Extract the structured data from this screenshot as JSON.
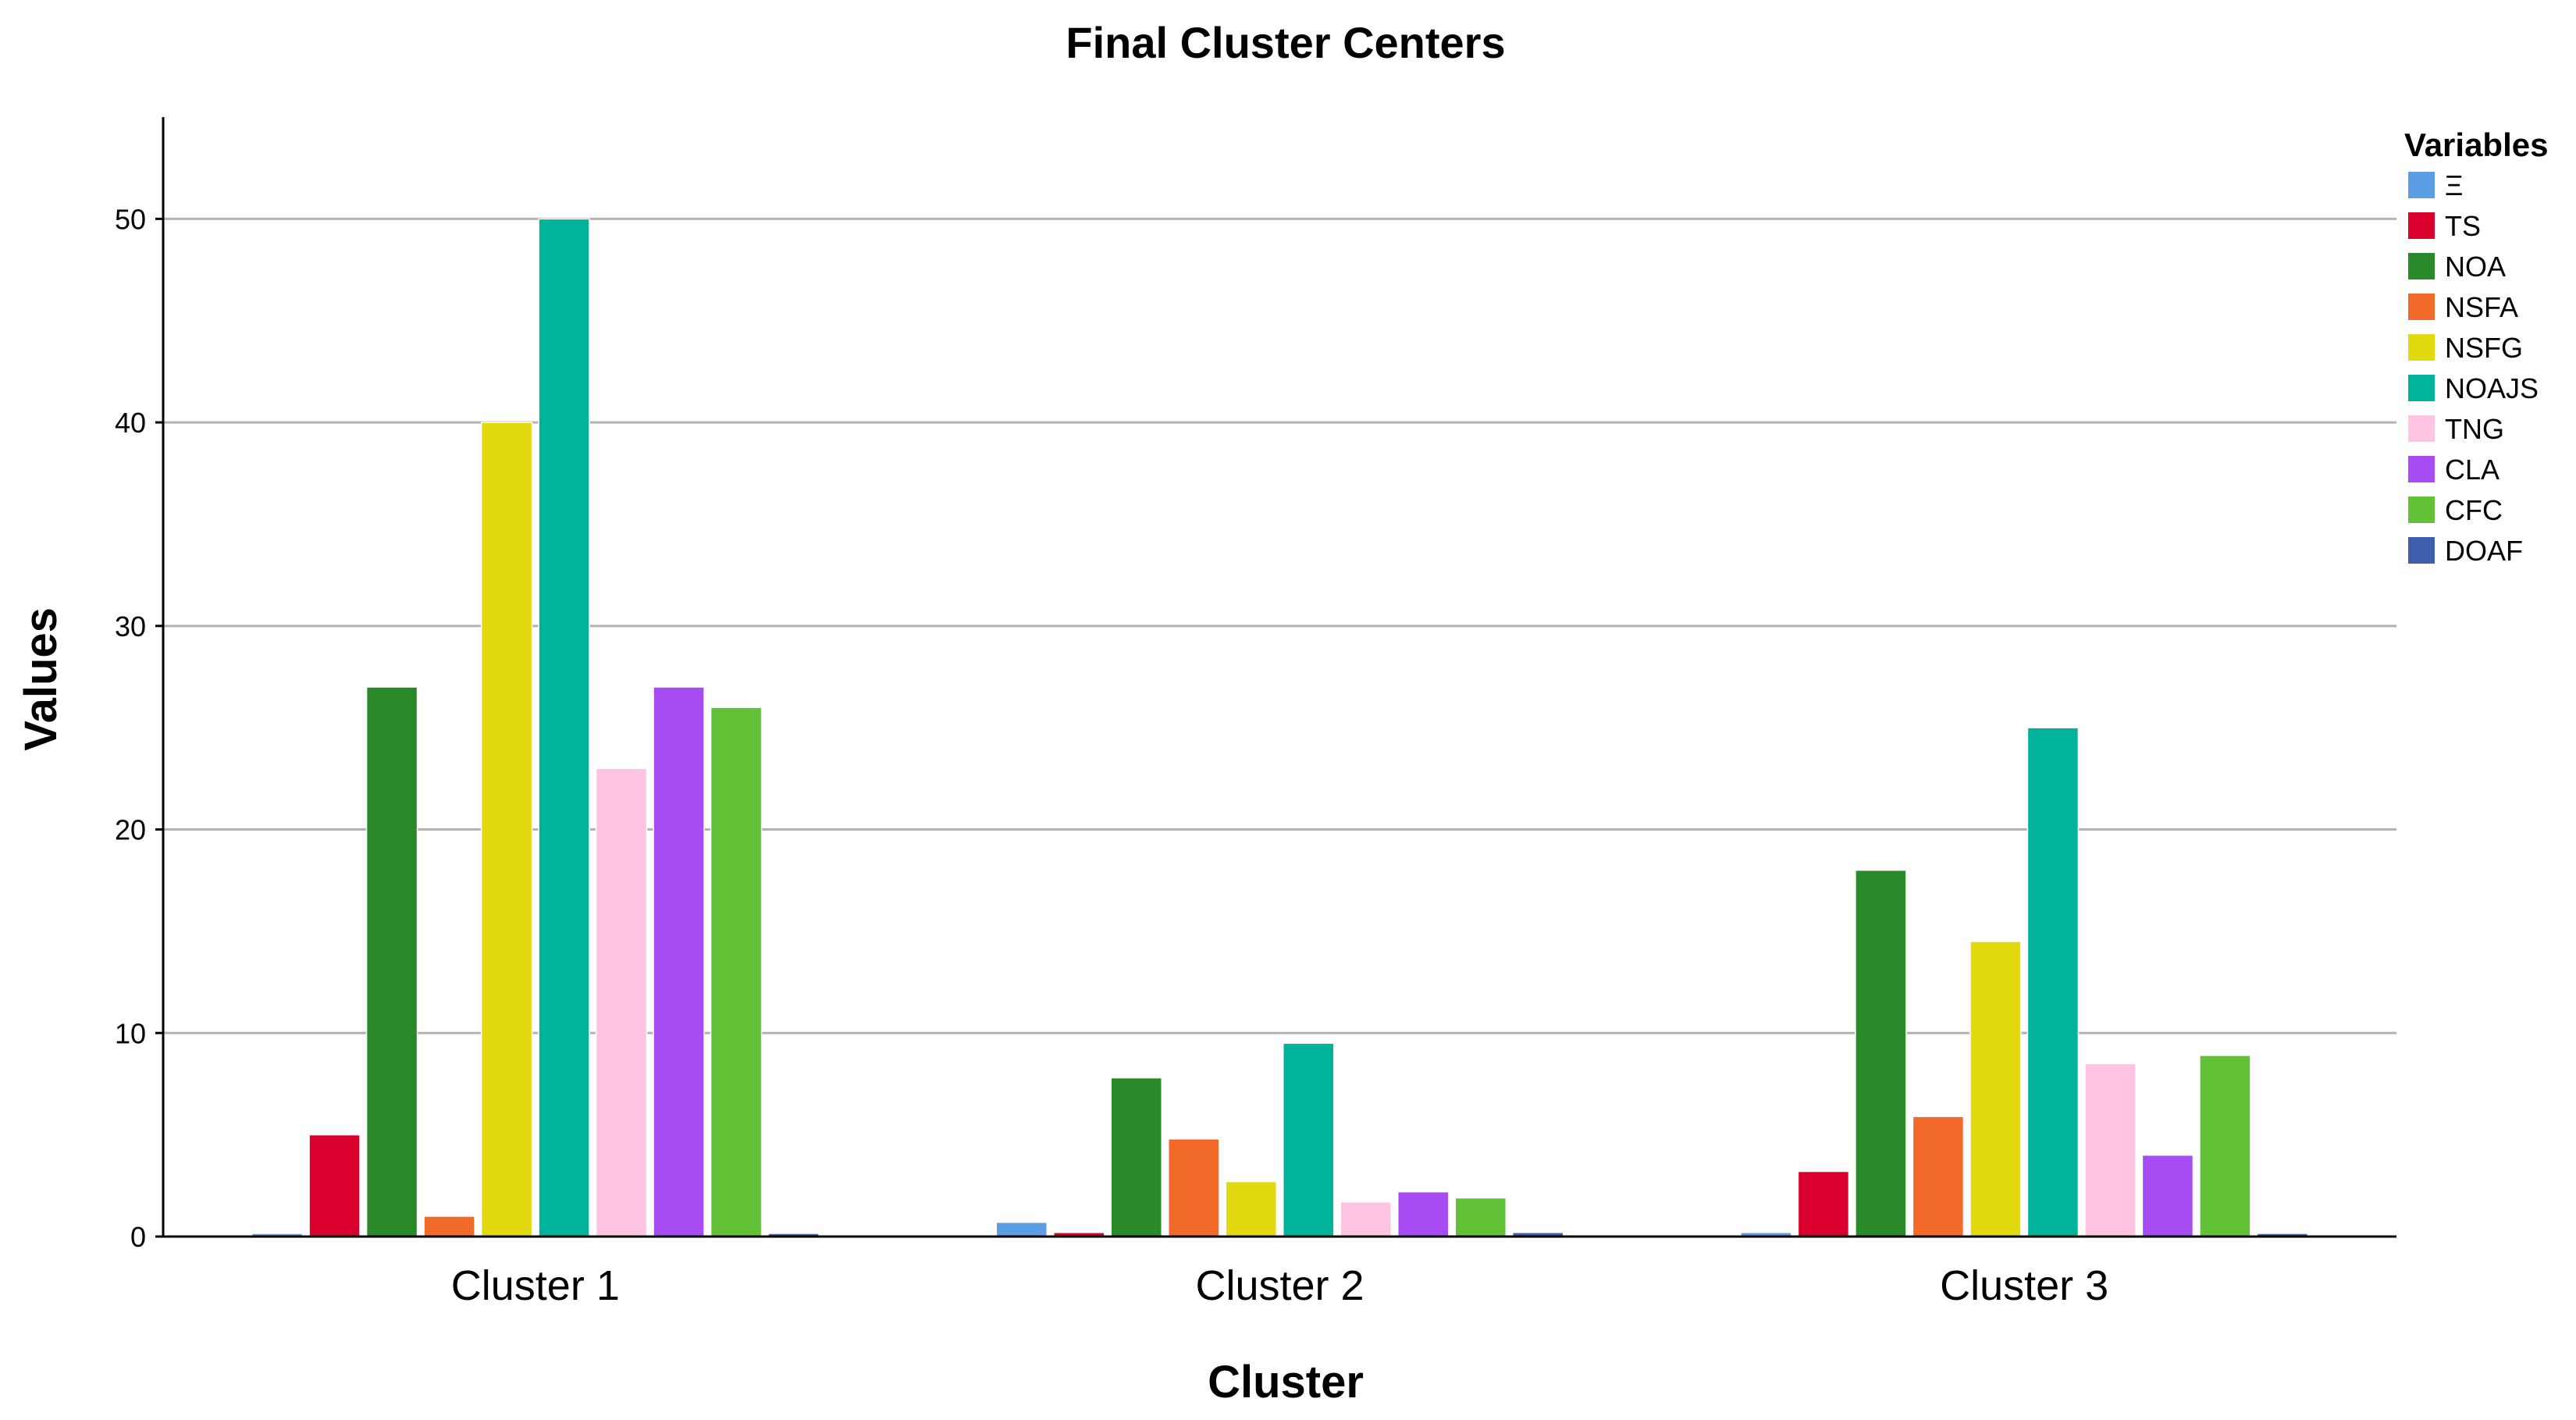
{
  "chart_data": {
    "type": "bar",
    "title": "Final Cluster Centers",
    "xlabel": "Cluster",
    "ylabel": "Values",
    "ylim": [
      0,
      55
    ],
    "yticks": [
      0,
      10,
      20,
      30,
      40,
      50
    ],
    "grid": true,
    "legend_title": "Variables",
    "legend_position": "right",
    "categories": [
      "Cluster 1",
      "Cluster 2",
      "Cluster 3"
    ],
    "series": [
      {
        "name": "Ξ",
        "color": "#5b9ee6",
        "values": [
          0.05,
          0.7,
          0.2
        ]
      },
      {
        "name": "TS",
        "color": "#d9002e",
        "values": [
          5.0,
          0.2,
          3.2
        ]
      },
      {
        "name": "NOA",
        "color": "#2a8a2a",
        "values": [
          27.0,
          7.8,
          18.0
        ]
      },
      {
        "name": "NSFA",
        "color": "#f26a2a",
        "values": [
          1.0,
          4.8,
          5.9
        ]
      },
      {
        "name": "NSFG",
        "color": "#e3d90f",
        "values": [
          40.0,
          2.7,
          14.5
        ]
      },
      {
        "name": "NOAJS",
        "color": "#00b39a",
        "values": [
          50.0,
          9.5,
          25.0
        ]
      },
      {
        "name": "TNG",
        "color": "#ffc4e1",
        "values": [
          23.0,
          1.7,
          8.5
        ]
      },
      {
        "name": "CLA",
        "color": "#a64cf2",
        "values": [
          27.0,
          2.2,
          4.0
        ]
      },
      {
        "name": "CFC",
        "color": "#62c136",
        "values": [
          26.0,
          1.9,
          8.9
        ]
      },
      {
        "name": "DOAF",
        "color": "#3d5fad",
        "values": [
          0.05,
          0.2,
          0.1
        ]
      }
    ]
  }
}
